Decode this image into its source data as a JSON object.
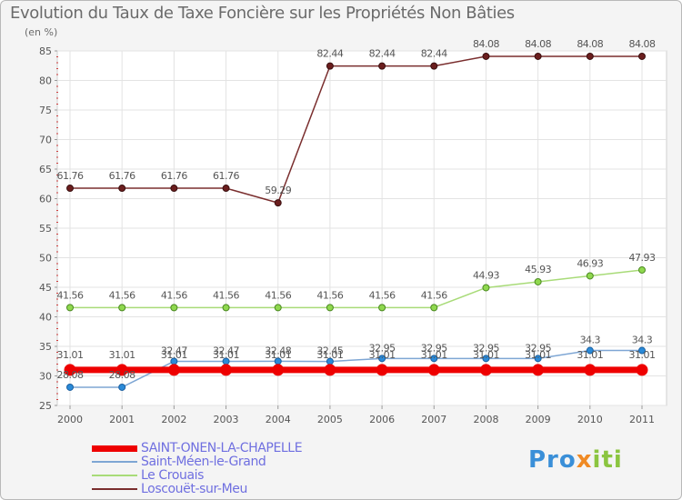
{
  "chart_data": {
    "type": "line",
    "title": "Evolution du Taux de Taxe Foncière sur les Propriétés Non Bâties",
    "ylabel": "(en %)",
    "xlabel": "",
    "ylim": [
      25,
      85
    ],
    "yticks": [
      "25",
      "30",
      "35",
      "40",
      "45",
      "50",
      "55",
      "60",
      "65",
      "70",
      "75",
      "80",
      "85"
    ],
    "categories": [
      "2000",
      "2001",
      "2002",
      "2003",
      "2004",
      "2005",
      "2006",
      "2007",
      "2008",
      "2009",
      "2010",
      "2011"
    ],
    "series": [
      {
        "name": "SAINT-ONEN-LA-CHAPELLE",
        "color": "#ee0000",
        "values": [
          31.01,
          31.01,
          31.01,
          31.01,
          31.01,
          31.01,
          31.01,
          31.01,
          31.01,
          31.01,
          31.01,
          31.01
        ],
        "labels": [
          "31.01",
          "31.01",
          "31.01",
          "31.01",
          "31.01",
          "31.01",
          "31.01",
          "31.01",
          "31.01",
          "31.01",
          "31.01",
          "31.01"
        ]
      },
      {
        "name": "Saint-Méen-le-Grand",
        "color": "#7ea6d4",
        "values": [
          28.08,
          28.08,
          32.47,
          32.47,
          32.48,
          32.45,
          32.95,
          32.95,
          32.95,
          32.95,
          34.3,
          34.3
        ],
        "labels": [
          "28.08",
          "28.08",
          "32.47",
          "32.47",
          "32.48",
          "32.45",
          "32.95",
          "32.95",
          "32.95",
          "32.95",
          "34.3",
          "34.3"
        ]
      },
      {
        "name": "Le Crouais",
        "color": "#a8db78",
        "values": [
          41.56,
          41.56,
          41.56,
          41.56,
          41.56,
          41.56,
          41.56,
          41.56,
          44.93,
          45.93,
          46.93,
          47.93
        ],
        "labels": [
          "41.56",
          "41.56",
          "41.56",
          "41.56",
          "41.56",
          "41.56",
          "41.56",
          "41.56",
          "44.93",
          "45.93",
          "46.93",
          "47.93"
        ]
      },
      {
        "name": "Loscouët-sur-Meu",
        "color": "#7a2e2e",
        "values": [
          61.76,
          61.76,
          61.76,
          61.76,
          59.29,
          82.44,
          82.44,
          82.44,
          84.08,
          84.08,
          84.08,
          84.08
        ],
        "labels": [
          "61.76",
          "61.76",
          "61.76",
          "61.76",
          "59.29",
          "82.44",
          "82.44",
          "82.44",
          "84.08",
          "84.08",
          "84.08",
          "84.08"
        ]
      }
    ],
    "legend_position": "bottom-left",
    "grid": true
  },
  "branding": {
    "logo_parts": [
      "Pro",
      "x",
      "iti"
    ]
  }
}
